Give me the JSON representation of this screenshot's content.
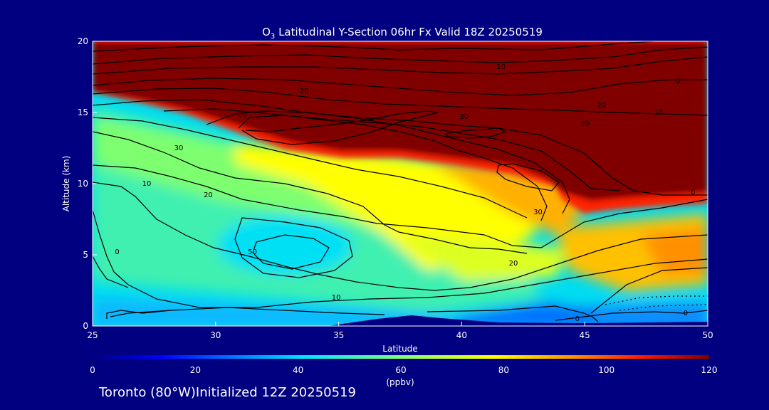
{
  "chart_data": {
    "type": "heatmap",
    "title": "O3 Latitudinal Y-Section 06hr  Fx Valid 18Z 20250519",
    "title_main": "O",
    "title_sub": "3",
    "title_rest": " Latitudinal Y-Section 06hr  Fx Valid 18Z 20250519",
    "xlabel": "Latitude",
    "ylabel": "Altitude (km)",
    "xlim": [
      25,
      50
    ],
    "ylim": [
      0,
      20
    ],
    "x_ticks": [
      "25",
      "30",
      "35",
      "40",
      "45",
      "50"
    ],
    "y_ticks": [
      "0",
      "5",
      "10",
      "15",
      "20"
    ],
    "colorbar": {
      "label": "(ppbv)",
      "range": [
        0,
        120
      ],
      "ticks": [
        "0",
        "20",
        "40",
        "60",
        "80",
        "100",
        "120"
      ],
      "colormap": "jet"
    },
    "fill_description": "O3 concentration (ppbv): >120 above ~14 km at 25N descending to ~8 km at 50N; ~45-55 in lower troposphere 25-33N; ~70-85 yellow band 35-44N mid-levels; ~90-100 orange 45-50N at 3-6 km; ~20-35 blue near surface 44-50N",
    "contour_labels": [
      {
        "text": "10",
        "lat": 41.6,
        "alt": 18.2
      },
      {
        "text": "0",
        "lat": 48.8,
        "alt": 17.2
      },
      {
        "text": "20",
        "lat": 33.6,
        "alt": 16.5
      },
      {
        "text": "20",
        "lat": 45.7,
        "alt": 15.5
      },
      {
        "text": "10",
        "lat": 48.0,
        "alt": 15.0
      },
      {
        "text": "40",
        "lat": 31.1,
        "alt": 14.8
      },
      {
        "text": "30",
        "lat": 40.1,
        "alt": 14.7
      },
      {
        "text": "30",
        "lat": 45.0,
        "alt": 14.2
      },
      {
        "text": "30",
        "lat": 28.5,
        "alt": 12.5
      },
      {
        "text": "10",
        "lat": 27.2,
        "alt": 10.0
      },
      {
        "text": "20",
        "lat": 29.7,
        "alt": 9.2
      },
      {
        "text": "30",
        "lat": 43.1,
        "alt": 8.0
      },
      {
        "text": "0",
        "lat": 49.4,
        "alt": 9.4
      },
      {
        "text": "0",
        "lat": 26.0,
        "alt": 5.2
      },
      {
        "text": "50",
        "lat": 31.5,
        "alt": 5.2
      },
      {
        "text": "20",
        "lat": 42.1,
        "alt": 4.4
      },
      {
        "text": "10",
        "lat": 34.9,
        "alt": 2.0
      },
      {
        "text": "0",
        "lat": 44.7,
        "alt": 0.5
      },
      {
        "text": "0",
        "lat": 49.1,
        "alt": 0.9
      }
    ]
  },
  "footer": "Toronto (80°W)Initialized 12Z 20250519"
}
